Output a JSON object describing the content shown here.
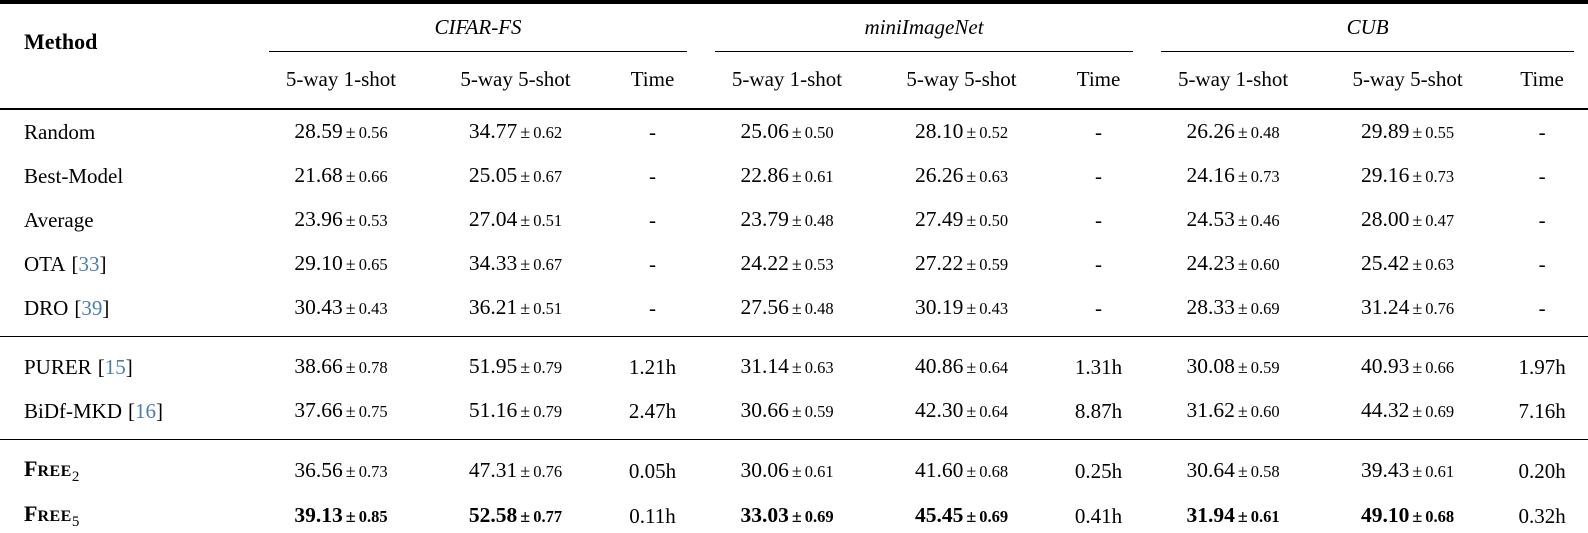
{
  "colors": {
    "text": "#000000",
    "background": "#ffffff",
    "citation": "#4a7db5"
  },
  "table": {
    "method_header": "Method",
    "pm": "±",
    "cite_open": "[",
    "cite_close": "]",
    "groups": [
      {
        "name": "CIFAR-FS",
        "columns": [
          "5-way 1-shot",
          "5-way 5-shot",
          "Time"
        ]
      },
      {
        "name": "miniImageNet",
        "columns": [
          "5-way 1-shot",
          "5-way 5-shot",
          "Time"
        ]
      },
      {
        "name": "CUB",
        "columns": [
          "5-way 1-shot",
          "5-way 5-shot",
          "Time"
        ]
      }
    ],
    "sections": [
      {
        "rows": [
          {
            "method": {
              "label": "Random"
            },
            "cells": [
              {
                "value": "28.59",
                "std": "0.56"
              },
              {
                "value": "34.77",
                "std": "0.62"
              },
              {
                "text": "-"
              },
              {
                "value": "25.06",
                "std": "0.50"
              },
              {
                "value": "28.10",
                "std": "0.52"
              },
              {
                "text": "-"
              },
              {
                "value": "26.26",
                "std": "0.48"
              },
              {
                "value": "29.89",
                "std": "0.55"
              },
              {
                "text": "-"
              }
            ]
          },
          {
            "method": {
              "label": "Best-Model"
            },
            "cells": [
              {
                "value": "21.68",
                "std": "0.66"
              },
              {
                "value": "25.05",
                "std": "0.67"
              },
              {
                "text": "-"
              },
              {
                "value": "22.86",
                "std": "0.61"
              },
              {
                "value": "26.26",
                "std": "0.63"
              },
              {
                "text": "-"
              },
              {
                "value": "24.16",
                "std": "0.73"
              },
              {
                "value": "29.16",
                "std": "0.73"
              },
              {
                "text": "-"
              }
            ]
          },
          {
            "method": {
              "label": "Average"
            },
            "cells": [
              {
                "value": "23.96",
                "std": "0.53"
              },
              {
                "value": "27.04",
                "std": "0.51"
              },
              {
                "text": "-"
              },
              {
                "value": "23.79",
                "std": "0.48"
              },
              {
                "value": "27.49",
                "std": "0.50"
              },
              {
                "text": "-"
              },
              {
                "value": "24.53",
                "std": "0.46"
              },
              {
                "value": "28.00",
                "std": "0.47"
              },
              {
                "text": "-"
              }
            ]
          },
          {
            "method": {
              "label": "OTA",
              "cite": "33"
            },
            "cells": [
              {
                "value": "29.10",
                "std": "0.65"
              },
              {
                "value": "34.33",
                "std": "0.67"
              },
              {
                "text": "-"
              },
              {
                "value": "24.22",
                "std": "0.53"
              },
              {
                "value": "27.22",
                "std": "0.59"
              },
              {
                "text": "-"
              },
              {
                "value": "24.23",
                "std": "0.60"
              },
              {
                "value": "25.42",
                "std": "0.63"
              },
              {
                "text": "-"
              }
            ]
          },
          {
            "method": {
              "label": "DRO",
              "cite": "39"
            },
            "cells": [
              {
                "value": "30.43",
                "std": "0.43"
              },
              {
                "value": "36.21",
                "std": "0.51"
              },
              {
                "text": "-"
              },
              {
                "value": "27.56",
                "std": "0.48"
              },
              {
                "value": "30.19",
                "std": "0.43"
              },
              {
                "text": "-"
              },
              {
                "value": "28.33",
                "std": "0.69"
              },
              {
                "value": "31.24",
                "std": "0.76"
              },
              {
                "text": "-"
              }
            ]
          }
        ]
      },
      {
        "rows": [
          {
            "method": {
              "label": "PURER",
              "cite": "15"
            },
            "cells": [
              {
                "value": "38.66",
                "std": "0.78"
              },
              {
                "value": "51.95",
                "std": "0.79"
              },
              {
                "text": "1.21h"
              },
              {
                "value": "31.14",
                "std": "0.63"
              },
              {
                "value": "40.86",
                "std": "0.64"
              },
              {
                "text": "1.31h"
              },
              {
                "value": "30.08",
                "std": "0.59"
              },
              {
                "value": "40.93",
                "std": "0.66"
              },
              {
                "text": "1.97h"
              }
            ]
          },
          {
            "method": {
              "label": "BiDf-MKD",
              "cite": "16"
            },
            "cells": [
              {
                "value": "37.66",
                "std": "0.75"
              },
              {
                "value": "51.16",
                "std": "0.79"
              },
              {
                "text": "2.47h"
              },
              {
                "value": "30.66",
                "std": "0.59"
              },
              {
                "value": "42.30",
                "std": "0.64"
              },
              {
                "text": "8.87h"
              },
              {
                "value": "31.62",
                "std": "0.60"
              },
              {
                "value": "44.32",
                "std": "0.69"
              },
              {
                "text": "7.16h"
              }
            ]
          }
        ]
      },
      {
        "rows": [
          {
            "method": {
              "sc_head": "F",
              "sc_tail": "REE",
              "sub": "2"
            },
            "cells": [
              {
                "value": "36.56",
                "std": "0.73"
              },
              {
                "value": "47.31",
                "std": "0.76"
              },
              {
                "text": "0.05h"
              },
              {
                "value": "30.06",
                "std": "0.61"
              },
              {
                "value": "41.60",
                "std": "0.68"
              },
              {
                "text": "0.25h"
              },
              {
                "value": "30.64",
                "std": "0.58"
              },
              {
                "value": "39.43",
                "std": "0.61"
              },
              {
                "text": "0.20h"
              }
            ]
          },
          {
            "method": {
              "sc_head": "F",
              "sc_tail": "REE",
              "sub": "5"
            },
            "cells": [
              {
                "value": "39.13",
                "std": "0.85",
                "bold": true
              },
              {
                "value": "52.58",
                "std": "0.77",
                "bold": true
              },
              {
                "text": "0.11h"
              },
              {
                "value": "33.03",
                "std": "0.69",
                "bold": true
              },
              {
                "value": "45.45",
                "std": "0.69",
                "bold": true
              },
              {
                "text": "0.41h"
              },
              {
                "value": "31.94",
                "std": "0.61",
                "bold": true
              },
              {
                "value": "49.10",
                "std": "0.68",
                "bold": true
              },
              {
                "text": "0.32h"
              }
            ]
          }
        ]
      }
    ]
  }
}
